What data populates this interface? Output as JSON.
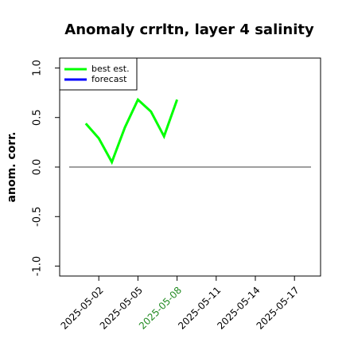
{
  "chart_data": {
    "type": "line",
    "title": "Anomaly crrltn, layer 4 salinity",
    "y_label": "anom. corr.",
    "x": [
      "2025-05-01",
      "2025-05-02",
      "2025-05-03",
      "2025-05-04",
      "2025-05-05",
      "2025-05-06",
      "2025-05-07",
      "2025-05-08"
    ],
    "series": [
      {
        "name": "best est.",
        "color": "#00ff00",
        "values": [
          0.44,
          0.29,
          0.05,
          0.4,
          0.68,
          0.56,
          0.31,
          0.68
        ]
      },
      {
        "name": "forecast",
        "color": "#0000ff",
        "values": [
          null,
          null,
          null,
          null,
          null,
          null,
          null,
          null
        ]
      }
    ],
    "xlim": [
      "2025-04-29",
      "2025-05-19"
    ],
    "xticks": [
      "2025-05-02",
      "2025-05-05",
      "2025-05-08",
      "2025-05-11",
      "2025-05-14",
      "2025-05-17"
    ],
    "highlight_xtick": "2025-05-08",
    "highlight_color": "#228b22",
    "ylim": [
      -1.1,
      1.1
    ],
    "yticks": [
      {
        "value": -1,
        "label": "-1.0"
      },
      -0.5,
      {
        "value": 0,
        "label": "0.0"
      },
      0.5,
      {
        "value": 1,
        "label": "1.0"
      }
    ],
    "hline": 0,
    "legend": "upper left"
  }
}
